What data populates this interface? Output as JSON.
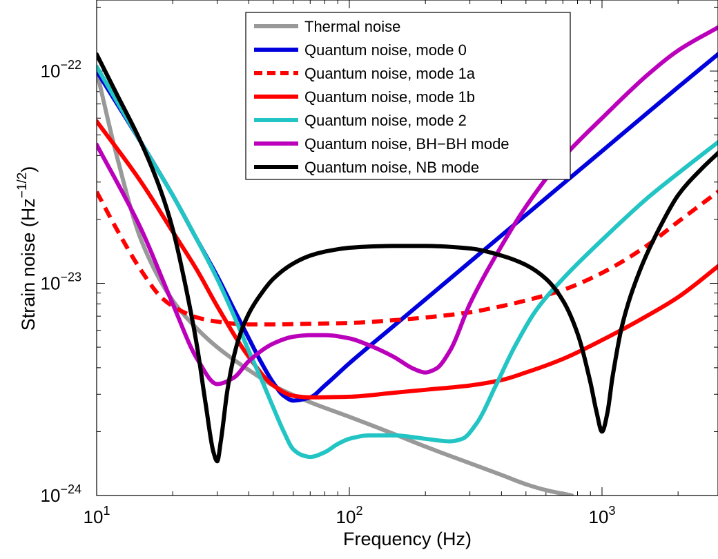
{
  "chart_data": {
    "type": "line",
    "xlabel": "Frequency (Hz)",
    "ylabel": "Strain noise (Hz",
    "ylabel_exponent": "−1/2",
    "ylabel_close": ")",
    "xscale": "log",
    "yscale": "log",
    "xlim": [
      10,
      3000
    ],
    "ylim": [
      1e-24,
      2e-22
    ],
    "x_ticks": [
      {
        "base": "10",
        "exp": "1"
      },
      {
        "base": "10",
        "exp": "2"
      },
      {
        "base": "10",
        "exp": "3"
      }
    ],
    "y_ticks": [
      {
        "base": "10",
        "exp": "−22"
      },
      {
        "base": "10",
        "exp": "−23"
      },
      {
        "base": "10",
        "exp": "−24"
      }
    ],
    "grid": false,
    "legend_position": "top-center",
    "series": [
      {
        "name": "Thermal noise",
        "color": "#999999",
        "dash": "solid",
        "x": [
          10,
          12,
          15,
          20,
          25,
          30,
          40,
          50,
          70,
          100,
          150,
          200,
          300,
          400,
          500,
          600,
          760
        ],
        "y": [
          1e-22,
          4e-23,
          1.6e-23,
          8.3e-24,
          6.1e-24,
          5e-24,
          3.9e-24,
          3.3e-24,
          2.75e-24,
          2.35e-24,
          1.95e-24,
          1.7e-24,
          1.42e-24,
          1.25e-24,
          1.13e-24,
          1.06e-24,
          1e-24
        ]
      },
      {
        "name": "Quantum noise, mode 0",
        "color": "#0000dd",
        "dash": "solid",
        "x": [
          10,
          15,
          20,
          25,
          30,
          35,
          40,
          45,
          50,
          55,
          60,
          70,
          80,
          100,
          150,
          200,
          300,
          500,
          700,
          1000,
          1500,
          2000,
          3000
        ],
        "y": [
          1e-22,
          4.6e-23,
          2.6e-23,
          1.6e-23,
          1.08e-23,
          7.5e-24,
          5.5e-24,
          4.2e-24,
          3.4e-24,
          2.95e-24,
          2.8e-24,
          2.9e-24,
          3.3e-24,
          4.2e-24,
          6.3e-24,
          8.4e-24,
          1.26e-23,
          2.1e-23,
          2.94e-23,
          4.2e-23,
          6.3e-23,
          8.4e-23,
          1.25e-22
        ]
      },
      {
        "name": "Quantum noise, mode 1a",
        "color": "#ff0000",
        "dash": "dashed",
        "x": [
          10,
          12,
          15,
          18,
          20,
          25,
          30,
          40,
          50,
          70,
          100,
          150,
          200,
          300,
          400,
          500,
          700,
          1000,
          1500,
          2000,
          3000
        ],
        "y": [
          2.7e-23,
          1.8e-23,
          1.15e-23,
          8.6e-24,
          7.8e-24,
          6.9e-24,
          6.6e-24,
          6.4e-24,
          6.4e-24,
          6.45e-24,
          6.5e-24,
          6.7e-24,
          6.9e-24,
          7.3e-24,
          7.8e-24,
          8.3e-24,
          9.3e-24,
          1.12e-23,
          1.5e-23,
          1.95e-23,
          2.8e-23
        ]
      },
      {
        "name": "Quantum noise, mode 1b",
        "color": "#ff0000",
        "dash": "solid",
        "x": [
          10,
          15,
          20,
          25,
          30,
          40,
          50,
          60,
          70,
          100,
          150,
          200,
          300,
          400,
          500,
          700,
          1000,
          1500,
          2000,
          3000
        ],
        "y": [
          5.8e-23,
          3e-23,
          1.75e-23,
          1.15e-23,
          7.8e-24,
          4.5e-24,
          3.3e-24,
          2.95e-24,
          2.9e-24,
          2.92e-24,
          3.05e-24,
          3.15e-24,
          3.3e-24,
          3.5e-24,
          3.8e-24,
          4.4e-24,
          5.4e-24,
          7e-24,
          8.6e-24,
          1.25e-23
        ]
      },
      {
        "name": "Quantum noise, mode 2",
        "color": "#22c4c4",
        "dash": "solid",
        "x": [
          10,
          15,
          20,
          25,
          30,
          35,
          40,
          45,
          50,
          55,
          60,
          65,
          70,
          80,
          90,
          100,
          120,
          150,
          200,
          250,
          280,
          320,
          380,
          450,
          550,
          700,
          1000,
          1500,
          2000,
          3000
        ],
        "y": [
          1.05e-22,
          4.6e-23,
          2.6e-23,
          1.6e-23,
          1.05e-23,
          7e-24,
          4.8e-24,
          3.5e-24,
          2.6e-24,
          2e-24,
          1.65e-24,
          1.55e-24,
          1.52e-24,
          1.6e-24,
          1.75e-24,
          1.85e-24,
          1.92e-24,
          1.92e-24,
          1.85e-24,
          1.8e-24,
          1.85e-24,
          2.2e-24,
          3.3e-24,
          5e-24,
          7.5e-24,
          1.05e-23,
          1.6e-23,
          2.5e-23,
          3.3e-23,
          4.8e-23
        ]
      },
      {
        "name": "Quantum noise, BH−BH mode",
        "color": "#bb00bb",
        "dash": "solid",
        "x": [
          10,
          15,
          20,
          25,
          30,
          35,
          40,
          50,
          60,
          70,
          80,
          100,
          120,
          150,
          180,
          200,
          220,
          250,
          300,
          400,
          500,
          700,
          1000,
          1500,
          2000,
          3000
        ],
        "y": [
          4.5e-23,
          1.8e-23,
          8e-24,
          4.4e-24,
          3.35e-24,
          3.6e-24,
          4.3e-24,
          5.2e-24,
          5.6e-24,
          5.7e-24,
          5.7e-24,
          5.5e-24,
          5.1e-24,
          4.5e-24,
          3.95e-24,
          3.8e-24,
          3.95e-24,
          4.8e-24,
          8e-24,
          1.5e-23,
          2.3e-23,
          3.9e-23,
          6e-23,
          9.5e-23,
          1.25e-22,
          1.65e-22
        ]
      },
      {
        "name": "Quantum noise, NB mode",
        "color": "#000000",
        "dash": "solid",
        "x": [
          10,
          12,
          15,
          18,
          20,
          22,
          25,
          27,
          29,
          30,
          31,
          33,
          36,
          40,
          45,
          50,
          60,
          70,
          80,
          100,
          120,
          150,
          200,
          300,
          400,
          500,
          600,
          700,
          800,
          900,
          950,
          1000,
          1050,
          1100,
          1200,
          1400,
          1700,
          2000,
          2500,
          3000
        ],
        "y": [
          1.2e-22,
          7.8e-23,
          4.6e-23,
          2.7e-23,
          1.8e-23,
          1.1e-23,
          5e-24,
          2.7e-24,
          1.6e-24,
          1.45e-24,
          1.8e-24,
          3.2e-24,
          5.2e-24,
          7.2e-24,
          9e-24,
          1.05e-23,
          1.24e-23,
          1.35e-23,
          1.41e-23,
          1.47e-23,
          1.49e-23,
          1.5e-23,
          1.5e-23,
          1.46e-23,
          1.35e-23,
          1.22e-23,
          1.05e-23,
          8.3e-24,
          5.8e-24,
          3.4e-24,
          2.5e-24,
          2e-24,
          2.45e-24,
          3.6e-24,
          6.3e-24,
          1.12e-23,
          1.85e-23,
          2.6e-23,
          3.5e-23,
          4.3e-23
        ]
      }
    ]
  }
}
